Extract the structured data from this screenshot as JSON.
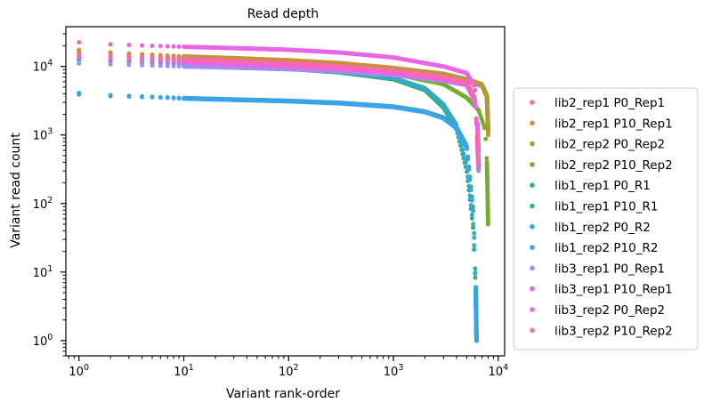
{
  "chart_data": {
    "type": "scatter",
    "title": "Read depth",
    "xlabel": "Variant rank-order",
    "ylabel": "Variant read count",
    "xscale": "log",
    "yscale": "log",
    "xlim": [
      0.75,
      11500
    ],
    "ylim": [
      0.6,
      38000
    ],
    "x_ticks": [
      {
        "value": 1,
        "base": "10",
        "exp": "0"
      },
      {
        "value": 10,
        "base": "10",
        "exp": "1"
      },
      {
        "value": 100,
        "base": "10",
        "exp": "2"
      },
      {
        "value": 1000,
        "base": "10",
        "exp": "3"
      },
      {
        "value": 10000,
        "base": "10",
        "exp": "4"
      }
    ],
    "y_ticks": [
      {
        "value": 1,
        "base": "10",
        "exp": "0"
      },
      {
        "value": 10,
        "base": "10",
        "exp": "1"
      },
      {
        "value": 100,
        "base": "10",
        "exp": "2"
      },
      {
        "value": 1000,
        "base": "10",
        "exp": "3"
      },
      {
        "value": 10000,
        "base": "10",
        "exp": "4"
      }
    ],
    "grid": false,
    "legend_position": "outside-right",
    "series": [
      {
        "name": "lib2_rep1 P0_Rep1",
        "color": "#f77189",
        "points": [
          [
            1,
            15500
          ],
          [
            2,
            14500
          ],
          [
            5,
            13500
          ],
          [
            10,
            12800
          ],
          [
            30,
            12000
          ],
          [
            100,
            11000
          ],
          [
            300,
            10000
          ],
          [
            1000,
            8500
          ],
          [
            3000,
            7000
          ],
          [
            5000,
            6000
          ],
          [
            7000,
            5200
          ],
          [
            7800,
            3500
          ],
          [
            8000,
            1200
          ]
        ]
      },
      {
        "name": "lib2_rep1 P10_Rep1",
        "color": "#dc8932",
        "points": [
          [
            1,
            17500
          ],
          [
            2,
            16000
          ],
          [
            5,
            14800
          ],
          [
            10,
            14000
          ],
          [
            30,
            13200
          ],
          [
            100,
            12300
          ],
          [
            300,
            11200
          ],
          [
            1000,
            9500
          ],
          [
            3000,
            7800
          ],
          [
            5000,
            6500
          ],
          [
            7000,
            5500
          ],
          [
            7800,
            3800
          ],
          [
            8000,
            1300
          ]
        ]
      },
      {
        "name": "lib2_rep2 P0_Rep2",
        "color": "#ae9d31",
        "points": [
          [
            1,
            16500
          ],
          [
            2,
            15200
          ],
          [
            5,
            14000
          ],
          [
            10,
            13300
          ],
          [
            30,
            12500
          ],
          [
            100,
            11600
          ],
          [
            300,
            10500
          ],
          [
            1000,
            9000
          ],
          [
            3000,
            7500
          ],
          [
            5000,
            6300
          ],
          [
            7000,
            5400
          ],
          [
            7800,
            3600
          ],
          [
            8000,
            1000
          ]
        ]
      },
      {
        "name": "lib2_rep2 P10_Rep2",
        "color": "#77ab31",
        "points": [
          [
            1,
            14000
          ],
          [
            2,
            13200
          ],
          [
            5,
            12500
          ],
          [
            10,
            12000
          ],
          [
            30,
            11200
          ],
          [
            100,
            10300
          ],
          [
            300,
            9300
          ],
          [
            1000,
            7800
          ],
          [
            3000,
            5500
          ],
          [
            5000,
            3500
          ],
          [
            6500,
            2300
          ],
          [
            7500,
            1200
          ],
          [
            7800,
            400
          ],
          [
            8000,
            50
          ]
        ]
      },
      {
        "name": "lib1_rep1 P0_R1",
        "color": "#33b07a",
        "points": [
          [
            1,
            12500
          ],
          [
            2,
            12000
          ],
          [
            5,
            11300
          ],
          [
            10,
            10800
          ],
          [
            30,
            10000
          ],
          [
            100,
            9200
          ],
          [
            300,
            8200
          ],
          [
            1000,
            6500
          ],
          [
            2000,
            4500
          ],
          [
            3000,
            2500
          ],
          [
            4000,
            1200
          ],
          [
            5000,
            300
          ],
          [
            5800,
            40
          ],
          [
            6100,
            5
          ],
          [
            6200,
            1
          ]
        ]
      },
      {
        "name": "lib1_rep1 P10_R1",
        "color": "#36ada4",
        "points": [
          [
            1,
            4100
          ],
          [
            2,
            3800
          ],
          [
            5,
            3600
          ],
          [
            10,
            3450
          ],
          [
            30,
            3300
          ],
          [
            100,
            3150
          ],
          [
            300,
            2950
          ],
          [
            1000,
            2600
          ],
          [
            2000,
            2200
          ],
          [
            3000,
            1800
          ],
          [
            4000,
            1300
          ],
          [
            5000,
            700
          ],
          [
            5800,
            80
          ],
          [
            6100,
            6
          ],
          [
            6200,
            1
          ]
        ]
      },
      {
        "name": "lib1_rep2 P0_R2",
        "color": "#38a9c5",
        "points": [
          [
            1,
            13000
          ],
          [
            2,
            12400
          ],
          [
            5,
            11700
          ],
          [
            10,
            11100
          ],
          [
            30,
            10300
          ],
          [
            100,
            9400
          ],
          [
            300,
            8400
          ],
          [
            1000,
            6800
          ],
          [
            2000,
            4800
          ],
          [
            3000,
            2800
          ],
          [
            4000,
            1400
          ],
          [
            5000,
            350
          ],
          [
            5800,
            45
          ],
          [
            6100,
            6
          ],
          [
            6200,
            1
          ]
        ]
      },
      {
        "name": "lib1_rep2 P10_R2",
        "color": "#3ba3ec",
        "points": [
          [
            1,
            3900
          ],
          [
            2,
            3700
          ],
          [
            5,
            3550
          ],
          [
            10,
            3400
          ],
          [
            30,
            3250
          ],
          [
            100,
            3100
          ],
          [
            300,
            2900
          ],
          [
            1000,
            2550
          ],
          [
            2000,
            2150
          ],
          [
            3000,
            1750
          ],
          [
            4000,
            1250
          ],
          [
            5000,
            650
          ],
          [
            5800,
            70
          ],
          [
            6100,
            5
          ],
          [
            6200,
            1
          ]
        ]
      },
      {
        "name": "lib3_rep1 P0_Rep1",
        "color": "#a48cf4",
        "points": [
          [
            1,
            11000
          ],
          [
            2,
            10700
          ],
          [
            5,
            10300
          ],
          [
            10,
            10000
          ],
          [
            30,
            9600
          ],
          [
            100,
            9100
          ],
          [
            300,
            8500
          ],
          [
            1000,
            7500
          ],
          [
            3000,
            6200
          ],
          [
            5000,
            5300
          ],
          [
            6000,
            3000
          ],
          [
            6300,
            800
          ],
          [
            6500,
            300
          ]
        ]
      },
      {
        "name": "lib3_rep1 P10_Rep1",
        "color": "#e866e6",
        "points": [
          [
            1,
            22500
          ],
          [
            2,
            21000
          ],
          [
            5,
            20000
          ],
          [
            10,
            19300
          ],
          [
            30,
            18500
          ],
          [
            100,
            17500
          ],
          [
            300,
            16000
          ],
          [
            1000,
            13500
          ],
          [
            3000,
            10000
          ],
          [
            5000,
            8000
          ],
          [
            6000,
            5000
          ],
          [
            6300,
            1500
          ],
          [
            6500,
            600
          ]
        ]
      },
      {
        "name": "lib3_rep2 P0_Rep2",
        "color": "#f461dd",
        "points": [
          [
            1,
            13500
          ],
          [
            2,
            12800
          ],
          [
            5,
            12100
          ],
          [
            10,
            11600
          ],
          [
            30,
            10900
          ],
          [
            100,
            10100
          ],
          [
            300,
            9200
          ],
          [
            1000,
            8000
          ],
          [
            3000,
            6500
          ],
          [
            5000,
            5500
          ],
          [
            6000,
            3200
          ],
          [
            6300,
            900
          ],
          [
            6500,
            350
          ]
        ]
      },
      {
        "name": "lib3_rep2 P10_Rep2",
        "color": "#f66bad",
        "points": [
          [
            1,
            15000
          ],
          [
            2,
            14200
          ],
          [
            5,
            13400
          ],
          [
            10,
            12800
          ],
          [
            30,
            12000
          ],
          [
            100,
            11100
          ],
          [
            300,
            10100
          ],
          [
            1000,
            8700
          ],
          [
            3000,
            7000
          ],
          [
            5000,
            5800
          ],
          [
            6000,
            3500
          ],
          [
            6300,
            1000
          ],
          [
            6500,
            400
          ]
        ]
      }
    ]
  }
}
